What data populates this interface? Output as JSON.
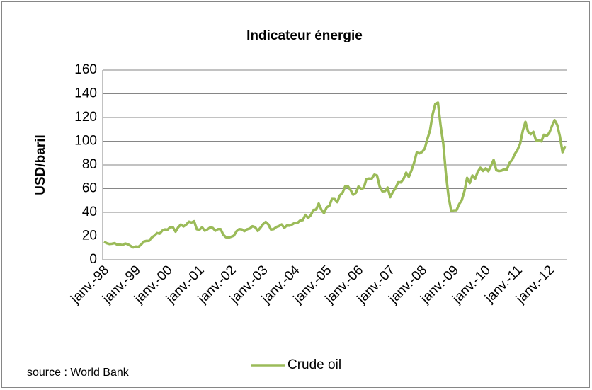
{
  "chart_data": {
    "type": "line",
    "title": "Indicateur énergie",
    "y_label": "USD/baril",
    "source": "source : World Bank",
    "categories": [
      "janv.-98",
      null,
      null,
      null,
      null,
      null,
      null,
      null,
      null,
      null,
      null,
      null,
      "janv.-99",
      null,
      null,
      null,
      null,
      null,
      null,
      null,
      null,
      null,
      null,
      null,
      "janv.-00",
      null,
      null,
      null,
      null,
      null,
      null,
      null,
      null,
      null,
      null,
      null,
      "janv.-01",
      null,
      null,
      null,
      null,
      null,
      null,
      null,
      null,
      null,
      null,
      null,
      "janv.-02",
      null,
      null,
      null,
      null,
      null,
      null,
      null,
      null,
      null,
      null,
      null,
      "janv.-03",
      null,
      null,
      null,
      null,
      null,
      null,
      null,
      null,
      null,
      null,
      null,
      "janv.-04",
      null,
      null,
      null,
      null,
      null,
      null,
      null,
      null,
      null,
      null,
      null,
      "janv.-05",
      null,
      null,
      null,
      null,
      null,
      null,
      null,
      null,
      null,
      null,
      null,
      "janv.-06",
      null,
      null,
      null,
      null,
      null,
      null,
      null,
      null,
      null,
      null,
      null,
      "janv.-07",
      null,
      null,
      null,
      null,
      null,
      null,
      null,
      null,
      null,
      null,
      null,
      "janv.-08",
      null,
      null,
      null,
      null,
      null,
      null,
      null,
      null,
      null,
      null,
      null,
      "janv.-09",
      null,
      null,
      null,
      null,
      null,
      null,
      null,
      null,
      null,
      null,
      null,
      "janv.-10",
      null,
      null,
      null,
      null,
      null,
      null,
      null,
      null,
      null,
      null,
      null,
      "janv.-11",
      null,
      null,
      null,
      null,
      null,
      null,
      null,
      null,
      null,
      null,
      null,
      "janv.-12",
      null,
      null,
      null,
      null,
      null,
      null
    ],
    "series": [
      {
        "name": "Crude oil",
        "color": "#9bbb59",
        "values": [
          15.2,
          14.0,
          13.3,
          13.5,
          14.0,
          12.7,
          12.8,
          12.4,
          13.7,
          13.1,
          11.7,
          10.4,
          11.2,
          10.9,
          12.8,
          15.3,
          15.9,
          16.0,
          18.7,
          20.3,
          22.5,
          22.0,
          24.6,
          25.6,
          25.4,
          27.6,
          27.4,
          23.7,
          27.4,
          29.7,
          28.1,
          29.6,
          32.1,
          31.4,
          32.5,
          25.7,
          25.3,
          27.4,
          24.5,
          25.6,
          27.2,
          26.9,
          24.5,
          25.8,
          25.8,
          21.1,
          19.0,
          18.7,
          19.4,
          20.3,
          24.0,
          25.8,
          25.6,
          24.1,
          25.7,
          26.3,
          28.3,
          27.5,
          24.3,
          27.0,
          30.0,
          31.9,
          29.8,
          25.5,
          25.8,
          27.6,
          28.4,
          29.8,
          26.9,
          28.9,
          28.7,
          29.8,
          31.2,
          31.1,
          33.1,
          33.4,
          37.9,
          35.2,
          37.6,
          42.0,
          42.3,
          47.4,
          42.3,
          39.3,
          44.2,
          45.4,
          51.3,
          51.2,
          48.6,
          54.3,
          56.5,
          62.0,
          62.1,
          58.9,
          54.9,
          56.4,
          61.8,
          59.9,
          60.6,
          68.1,
          68.5,
          68.3,
          71.8,
          71.1,
          61.8,
          57.8,
          57.9,
          60.9,
          52.8,
          57.3,
          60.4,
          65.4,
          65.2,
          68.2,
          73.5,
          69.9,
          75.3,
          82.0,
          90.5,
          89.7,
          90.9,
          93.7,
          101.8,
          109.1,
          122.8,
          131.5,
          132.6,
          113.2,
          98.0,
          72.7,
          53.2,
          41.3,
          41.7,
          41.8,
          46.9,
          50.3,
          58.0,
          69.1,
          64.7,
          71.1,
          68.2,
          74.1,
          77.6,
          74.9,
          77.1,
          74.7,
          79.3,
          84.2,
          75.6,
          74.8,
          75.2,
          76.4,
          76.1,
          81.7,
          84.3,
          89.2,
          92.7,
          97.9,
          108.7,
          116.3,
          108.0,
          105.9,
          107.9,
          100.5,
          100.8,
          99.9,
          105.4,
          104.3,
          107.1,
          112.7,
          117.8,
          113.7,
          104.1,
          90.7,
          96.0
        ]
      }
    ],
    "ylim": [
      0,
      160
    ],
    "yticks": [
      0,
      20,
      40,
      60,
      80,
      100,
      120,
      140,
      160
    ],
    "grid": true
  }
}
